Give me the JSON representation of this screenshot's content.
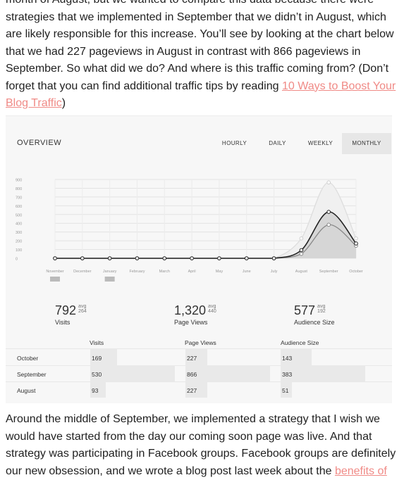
{
  "para_top": {
    "line0": "month of August, but we wanted to compare this data because there were",
    "line1": "strategies that we implemented in September that we didn’t in August, which",
    "line2": "are likely responsible for this increase.  You’ll see by looking at the chart below",
    "line3": "that we had 227 pageviews in August in contrast with 866 pageviews in",
    "line4": "September.  So what did we do?  And where is this traffic coming from? (Don’t",
    "line5_text": "forget that you can find additional traffic tips by reading ",
    "link_part1": "10 Ways to Boost Your",
    "link_part2": "Blog Traffic",
    "line6_tail": ")"
  },
  "overview": {
    "title": "OVERVIEW",
    "tabs": [
      "HOURLY",
      "DAILY",
      "WEEKLY",
      "MONTHLY"
    ],
    "active_tab": "MONTHLY"
  },
  "chart_data": {
    "type": "line",
    "categories": [
      "November",
      "December",
      "January",
      "February",
      "March",
      "April",
      "May",
      "June",
      "July",
      "August",
      "September",
      "October"
    ],
    "yticks": [
      "900",
      "800",
      "700",
      "600",
      "500",
      "400",
      "300",
      "200",
      "100",
      "0"
    ],
    "ylim": [
      0,
      900
    ],
    "series": [
      {
        "values": [
          0,
          0,
          0,
          0,
          0,
          0,
          0,
          0,
          0,
          93,
          530,
          169
        ],
        "color": "#222222"
      },
      {
        "values": [
          0,
          0,
          0,
          0,
          0,
          0,
          0,
          0,
          0,
          227,
          866,
          227
        ],
        "color": "#dddddd"
      },
      {
        "values": [
          0,
          0,
          0,
          0,
          0,
          0,
          0,
          0,
          0,
          51,
          383,
          143
        ],
        "color": "#888888"
      }
    ],
    "grid": true
  },
  "stats": [
    {
      "value": "792",
      "avg_label": "avg",
      "avg": "264",
      "label": "Visits"
    },
    {
      "value": "1,320",
      "avg_label": "avg",
      "avg": "440",
      "label": "Page Views"
    },
    {
      "value": "577",
      "avg_label": "avg",
      "avg": "192",
      "label": "Audience Size"
    }
  ],
  "table": {
    "headers": [
      "Visits",
      "Page Views",
      "Audience Size"
    ],
    "rows": [
      {
        "label": "October",
        "visits": "169",
        "pageviews": "227",
        "audience": "143",
        "visits_frac": 0.32,
        "pageviews_frac": 0.26,
        "audience_frac": 0.37
      },
      {
        "label": "September",
        "visits": "530",
        "pageviews": "866",
        "audience": "383",
        "visits_frac": 1.0,
        "pageviews_frac": 1.0,
        "audience_frac": 1.0
      },
      {
        "label": "August",
        "visits": "93",
        "pageviews": "227",
        "audience": "51",
        "visits_frac": 0.18,
        "pageviews_frac": 0.26,
        "audience_frac": 0.13
      }
    ]
  },
  "para_bottom": {
    "line0": "Around the middle of September, we implemented a strategy that I wish we",
    "line1": "would have started from the day our coming soon page was live.  And that",
    "line2": "strategy was participating in Facebook groups.  Facebook groups are definitely",
    "line3_text": "our new obsession, and we wrote a blog post last week about the ",
    "link": "benefits of"
  }
}
